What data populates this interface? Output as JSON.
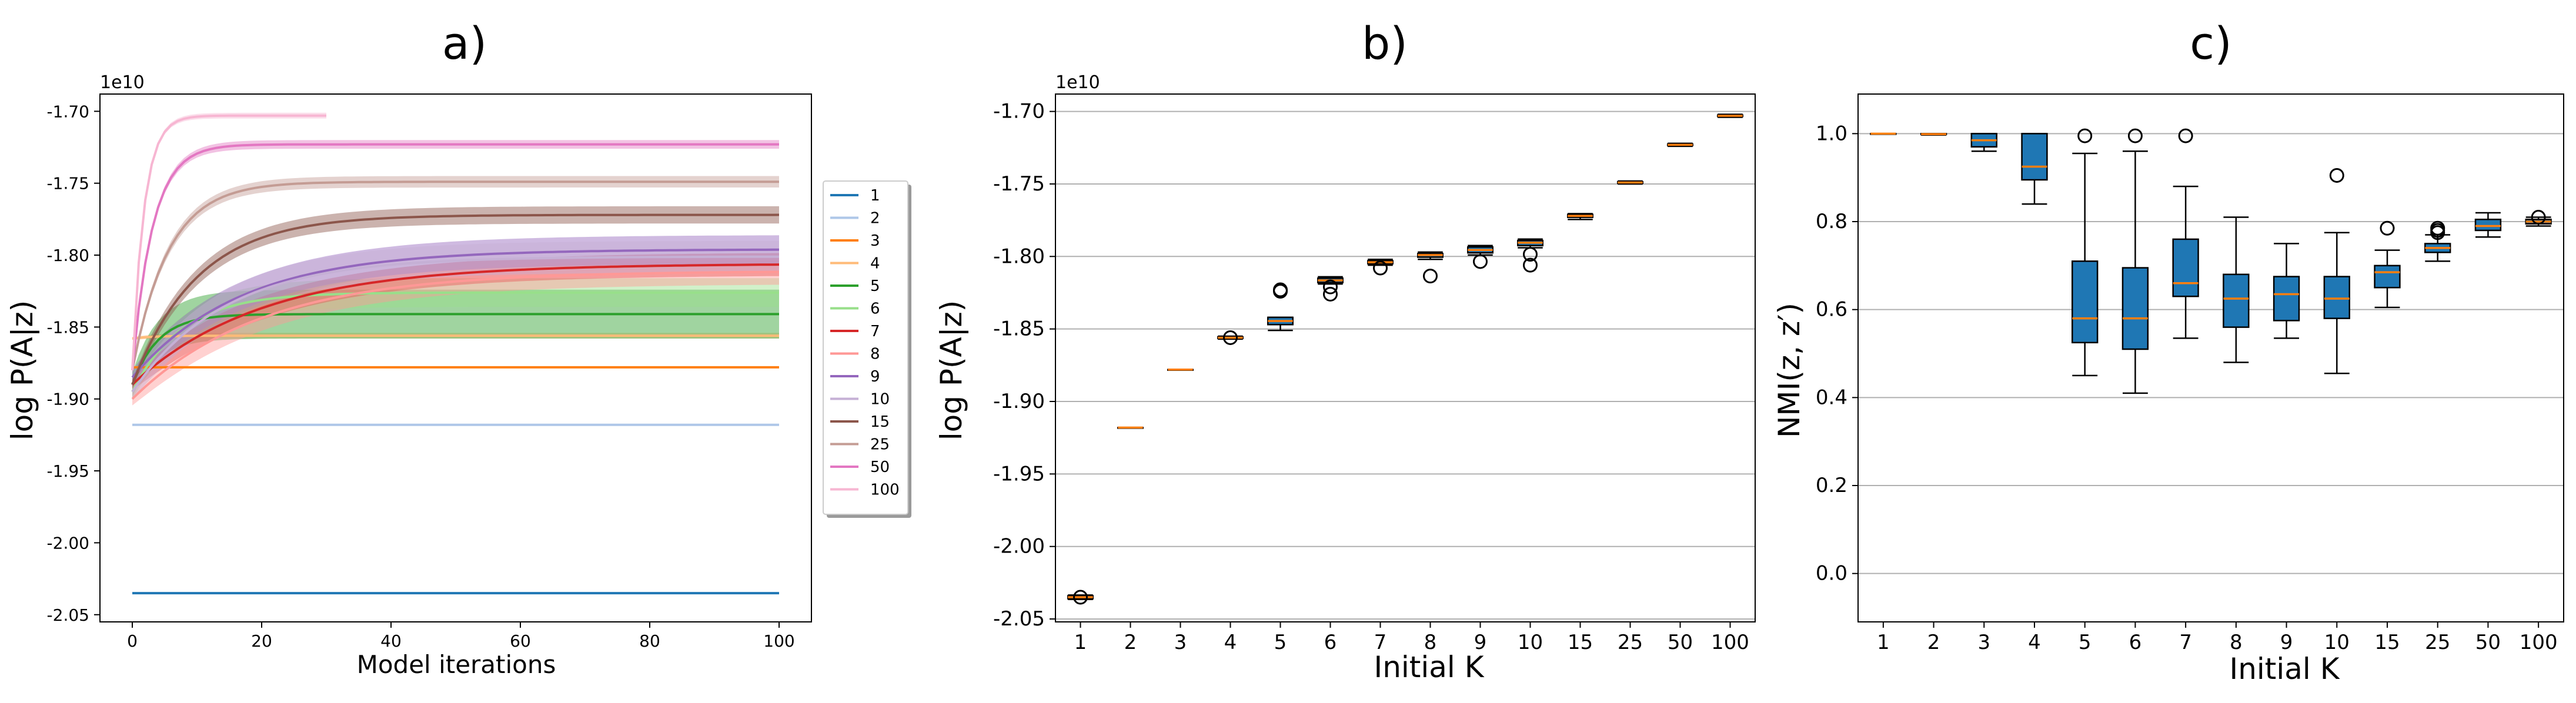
{
  "chart_data": [
    {
      "panel_title": "a)",
      "type": "line",
      "xlabel": "Model iterations",
      "ylabel": "log P(A|z)",
      "offset_text": "1e10",
      "xlim": [
        -5,
        105
      ],
      "ylim": [
        -2.055,
        -1.688
      ],
      "xticks": [
        0,
        20,
        40,
        60,
        80,
        100
      ],
      "ytick_labels": [
        "-2.05",
        "-2.00",
        "-1.95",
        "-1.90",
        "-1.85",
        "-1.80",
        "-1.75",
        "-1.70"
      ],
      "ytick_values": [
        -2.05,
        -2.0,
        -1.95,
        -1.9,
        -1.85,
        -1.8,
        -1.75,
        -1.7
      ],
      "grid": false,
      "legend_position": "right-outside",
      "series": [
        {
          "name": "1",
          "color": "#1f77b4",
          "start": -2.035,
          "final": -2.035,
          "rate": 0.3,
          "band": 0.0,
          "length": 100
        },
        {
          "name": "2",
          "color": "#aec7e8",
          "start": -1.918,
          "final": -1.918,
          "rate": 0.3,
          "band": 0.0,
          "length": 100
        },
        {
          "name": "3",
          "color": "#ff7f0e",
          "start": -1.878,
          "final": -1.878,
          "rate": 0.3,
          "band": 0.0,
          "length": 100
        },
        {
          "name": "4",
          "color": "#ffbb78",
          "start": -1.858,
          "final": -1.856,
          "rate": 0.3,
          "band": 0.002,
          "length": 100
        },
        {
          "name": "5",
          "color": "#2ca02c",
          "start": -1.89,
          "final": -1.841,
          "rate": 0.25,
          "band": 0.017,
          "length": 100
        },
        {
          "name": "6",
          "color": "#98df8a",
          "start": -1.895,
          "final": -1.826,
          "rate": 0.13,
          "band": 0.01,
          "length": 100
        },
        {
          "name": "7",
          "color": "#d62728",
          "start": -1.89,
          "final": -1.806,
          "rate": 0.05,
          "band": 0.008,
          "length": 100
        },
        {
          "name": "8",
          "color": "#ff9896",
          "start": -1.9,
          "final": -1.811,
          "rate": 0.05,
          "band": 0.009,
          "length": 100
        },
        {
          "name": "9",
          "color": "#9467bd",
          "start": -1.885,
          "final": -1.796,
          "rate": 0.06,
          "band": 0.01,
          "length": 100
        },
        {
          "name": "10",
          "color": "#c5b0d5",
          "start": -1.895,
          "final": -1.801,
          "rate": 0.07,
          "band": 0.011,
          "length": 100
        },
        {
          "name": "15",
          "color": "#8c564b",
          "start": -1.89,
          "final": -1.772,
          "rate": 0.1,
          "band": 0.006,
          "length": 100
        },
        {
          "name": "25",
          "color": "#c49c94",
          "start": -1.88,
          "final": -1.749,
          "rate": 0.18,
          "band": 0.004,
          "length": 100
        },
        {
          "name": "50",
          "color": "#e377c2",
          "start": -1.88,
          "final": -1.723,
          "rate": 0.32,
          "band": 0.003,
          "length": 100
        },
        {
          "name": "100",
          "color": "#f7b6d2",
          "start": -1.88,
          "final": -1.703,
          "rate": 0.55,
          "band": 0.002,
          "length": 30
        }
      ]
    },
    {
      "panel_title": "b)",
      "type": "box",
      "xlabel": "Initial K",
      "ylabel": "log P(A|z)",
      "offset_text": "1e10",
      "ylim": [
        -2.052,
        -1.688
      ],
      "ytick_labels": [
        "-2.05",
        "-2.00",
        "-1.95",
        "-1.90",
        "-1.85",
        "-1.80",
        "-1.75",
        "-1.70"
      ],
      "ytick_values": [
        -2.05,
        -2.0,
        -1.95,
        -1.9,
        -1.85,
        -1.8,
        -1.75,
        -1.7
      ],
      "grid": true,
      "categories": [
        "1",
        "2",
        "3",
        "4",
        "5",
        "6",
        "7",
        "8",
        "9",
        "10",
        "15",
        "25",
        "50",
        "100"
      ],
      "boxes": [
        {
          "median": -2.035,
          "q1": -2.036,
          "q3": -2.034,
          "wlo": -2.0365,
          "whi": -2.0335,
          "fliers": [
            -2.035
          ]
        },
        {
          "median": -1.918,
          "q1": -1.918,
          "q3": -1.918,
          "wlo": -1.918,
          "whi": -1.918,
          "fliers": []
        },
        {
          "median": -1.878,
          "q1": -1.878,
          "q3": -1.878,
          "wlo": -1.878,
          "whi": -1.878,
          "fliers": []
        },
        {
          "median": -1.856,
          "q1": -1.8565,
          "q3": -1.8555,
          "wlo": -1.857,
          "whi": -1.855,
          "fliers": [
            -1.856
          ]
        },
        {
          "median": -1.8445,
          "q1": -1.847,
          "q3": -1.842,
          "wlo": -1.851,
          "whi": -1.842,
          "fliers": [
            -1.824,
            -1.823
          ]
        },
        {
          "median": -1.8165,
          "q1": -1.818,
          "q3": -1.815,
          "wlo": -1.819,
          "whi": -1.814,
          "fliers": [
            -1.821,
            -1.826
          ]
        },
        {
          "median": -1.804,
          "q1": -1.805,
          "q3": -1.803,
          "wlo": -1.806,
          "whi": -1.802,
          "fliers": [
            -1.808
          ]
        },
        {
          "median": -1.799,
          "q1": -1.8005,
          "q3": -1.798,
          "wlo": -1.802,
          "whi": -1.797,
          "fliers": [
            -1.8135
          ]
        },
        {
          "median": -1.7955,
          "q1": -1.7975,
          "q3": -1.7935,
          "wlo": -1.799,
          "whi": -1.7925,
          "fliers": [
            -1.8035
          ]
        },
        {
          "median": -1.7905,
          "q1": -1.7925,
          "q3": -1.789,
          "wlo": -1.794,
          "whi": -1.788,
          "fliers": [
            -1.7985,
            -1.806
          ]
        },
        {
          "median": -1.772,
          "q1": -1.773,
          "q3": -1.771,
          "wlo": -1.7745,
          "whi": -1.7705,
          "fliers": []
        },
        {
          "median": -1.749,
          "q1": -1.7495,
          "q3": -1.7485,
          "wlo": -1.75,
          "whi": -1.748,
          "fliers": []
        },
        {
          "median": -1.723,
          "q1": -1.7235,
          "q3": -1.7225,
          "wlo": -1.724,
          "whi": -1.722,
          "fliers": []
        },
        {
          "median": -1.703,
          "q1": -1.7035,
          "q3": -1.7025,
          "wlo": -1.704,
          "whi": -1.702,
          "fliers": []
        }
      ]
    },
    {
      "panel_title": "c)",
      "type": "box",
      "xlabel": "Initial K",
      "ylabel": "NMI(z, z′)",
      "ylim": [
        -0.11,
        1.09
      ],
      "ytick_labels": [
        "0.0",
        "0.2",
        "0.4",
        "0.6",
        "0.8",
        "1.0"
      ],
      "ytick_values": [
        0.0,
        0.2,
        0.4,
        0.6,
        0.8,
        1.0
      ],
      "grid": true,
      "categories": [
        "1",
        "2",
        "3",
        "4",
        "5",
        "6",
        "7",
        "8",
        "9",
        "10",
        "15",
        "25",
        "50",
        "100"
      ],
      "boxes": [
        {
          "median": 1.0,
          "q1": 1.0,
          "q3": 1.0,
          "wlo": 1.0,
          "whi": 1.0,
          "fliers": []
        },
        {
          "median": 0.999,
          "q1": 0.998,
          "q3": 1.0,
          "wlo": 0.997,
          "whi": 1.0,
          "fliers": []
        },
        {
          "median": 0.985,
          "q1": 0.97,
          "q3": 1.0,
          "wlo": 0.96,
          "whi": 1.0,
          "fliers": []
        },
        {
          "median": 0.925,
          "q1": 0.895,
          "q3": 1.0,
          "wlo": 0.84,
          "whi": 1.0,
          "fliers": []
        },
        {
          "median": 0.58,
          "q1": 0.525,
          "q3": 0.71,
          "wlo": 0.45,
          "whi": 0.955,
          "fliers": [
            0.995
          ]
        },
        {
          "median": 0.58,
          "q1": 0.51,
          "q3": 0.695,
          "wlo": 0.41,
          "whi": 0.96,
          "fliers": [
            0.995
          ]
        },
        {
          "median": 0.66,
          "q1": 0.63,
          "q3": 0.76,
          "wlo": 0.535,
          "whi": 0.88,
          "fliers": [
            0.995
          ]
        },
        {
          "median": 0.625,
          "q1": 0.56,
          "q3": 0.68,
          "wlo": 0.48,
          "whi": 0.81,
          "fliers": []
        },
        {
          "median": 0.635,
          "q1": 0.575,
          "q3": 0.675,
          "wlo": 0.535,
          "whi": 0.75,
          "fliers": []
        },
        {
          "median": 0.625,
          "q1": 0.58,
          "q3": 0.675,
          "wlo": 0.455,
          "whi": 0.775,
          "fliers": [
            0.905
          ]
        },
        {
          "median": 0.685,
          "q1": 0.65,
          "q3": 0.7,
          "wlo": 0.605,
          "whi": 0.735,
          "fliers": [
            0.785
          ]
        },
        {
          "median": 0.74,
          "q1": 0.73,
          "q3": 0.75,
          "wlo": 0.71,
          "whi": 0.77,
          "fliers": [
            0.775,
            0.78,
            0.785
          ]
        },
        {
          "median": 0.79,
          "q1": 0.78,
          "q3": 0.805,
          "wlo": 0.765,
          "whi": 0.82,
          "fliers": []
        },
        {
          "median": 0.8,
          "q1": 0.795,
          "q3": 0.805,
          "wlo": 0.79,
          "whi": 0.81,
          "fliers": [
            0.81
          ]
        }
      ]
    }
  ],
  "colors": {
    "box_fill": "#1f77b4",
    "median": "#ff7f0e",
    "grid": "#b0b0b0",
    "axis": "#000000"
  }
}
